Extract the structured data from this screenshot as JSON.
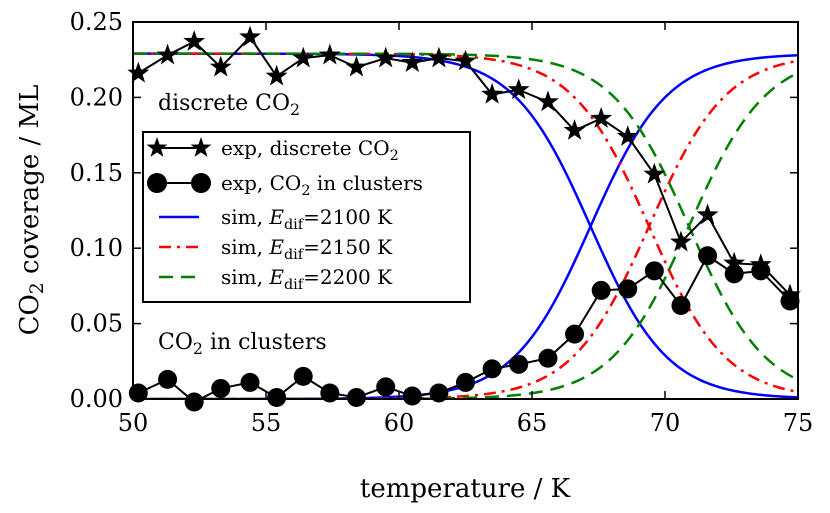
{
  "chart_data": {
    "type": "line",
    "xlabel": "temperature / K",
    "ylabel_parts": [
      "CO",
      "2",
      " coverage / ML"
    ],
    "xlim": [
      50,
      75
    ],
    "ylim": [
      0,
      0.25
    ],
    "xticks": [
      50,
      55,
      60,
      65,
      70,
      75
    ],
    "xtick_labels": [
      "50",
      "55",
      "60",
      "65",
      "70",
      "75"
    ],
    "yticks": [
      0.0,
      0.05,
      0.1,
      0.15,
      0.2,
      0.25
    ],
    "ytick_labels": [
      "0.00",
      "0.05",
      "0.10",
      "0.15",
      "0.20",
      "0.25"
    ],
    "annotations": [
      {
        "id": "discrete",
        "parts": [
          "discrete CO",
          "2",
          ""
        ]
      },
      {
        "id": "clusters",
        "parts": [
          "CO",
          "2",
          " in clusters"
        ]
      }
    ],
    "colors": {
      "exp": "#000000",
      "sim2100": "#0000ff",
      "sim2150": "#ff0000",
      "sim2200": "#008000"
    },
    "legend_position": "center-left",
    "legend": [
      {
        "series": "exp_discrete",
        "parts": [
          "exp, discrete CO",
          "2",
          ""
        ]
      },
      {
        "series": "exp_clusters",
        "parts": [
          "exp, CO",
          "2",
          " in clusters"
        ]
      },
      {
        "series": "sim_2100",
        "pre": "sim, ",
        "var": "E",
        "varsub": "dif",
        "post": "=2100 K"
      },
      {
        "series": "sim_2150",
        "pre": "sim, ",
        "var": "E",
        "varsub": "dif",
        "post": "=2150 K"
      },
      {
        "series": "sim_2200",
        "pre": "sim, ",
        "var": "E",
        "varsub": "dif",
        "post": "=2200 K"
      }
    ],
    "series": [
      {
        "name": "exp, discrete CO2",
        "id": "exp_discrete",
        "marker": "star",
        "x": [
          50.2,
          51.3,
          52.3,
          53.3,
          54.4,
          55.4,
          56.4,
          57.4,
          58.4,
          59.5,
          60.5,
          61.5,
          62.5,
          63.5,
          64.5,
          65.6,
          66.6,
          67.6,
          68.6,
          69.6,
          70.6,
          71.6,
          72.6,
          73.6,
          74.7
        ],
        "values": [
          0.216,
          0.228,
          0.237,
          0.22,
          0.24,
          0.214,
          0.226,
          0.228,
          0.22,
          0.226,
          0.223,
          0.226,
          0.224,
          0.202,
          0.205,
          0.197,
          0.178,
          0.186,
          0.174,
          0.149,
          0.104,
          0.122,
          0.09,
          0.089,
          0.069
        ]
      },
      {
        "name": "exp, CO2 in clusters",
        "id": "exp_clusters",
        "marker": "circle",
        "x": [
          50.2,
          51.3,
          52.3,
          53.3,
          54.4,
          55.4,
          56.4,
          57.4,
          58.4,
          59.5,
          60.5,
          61.5,
          62.5,
          63.5,
          64.5,
          65.6,
          66.6,
          67.6,
          68.6,
          69.6,
          70.6,
          71.6,
          72.6,
          73.6,
          74.7
        ],
        "values": [
          0.004,
          0.013,
          -0.002,
          0.007,
          0.011,
          0.001,
          0.015,
          0.004,
          0.001,
          0.008,
          0.002,
          0.004,
          0.011,
          0.02,
          0.023,
          0.027,
          0.043,
          0.072,
          0.073,
          0.085,
          0.062,
          0.095,
          0.083,
          0.085,
          0.065
        ]
      },
      {
        "name": "sim, Edif=2100 K",
        "id": "sim_2100",
        "style": "solid",
        "model": "sigmoid",
        "total": 0.229,
        "midpoint": 67.2,
        "width": 1.45
      },
      {
        "name": "sim, Edif=2150 K",
        "id": "sim_2150",
        "style": "dashdot",
        "model": "sigmoid",
        "total": 0.229,
        "midpoint": 69.4,
        "width": 1.45
      },
      {
        "name": "sim, Edif=2200 K",
        "id": "sim_2200",
        "style": "dashed",
        "model": "sigmoid",
        "total": 0.229,
        "midpoint": 70.9,
        "width": 1.45
      }
    ]
  }
}
